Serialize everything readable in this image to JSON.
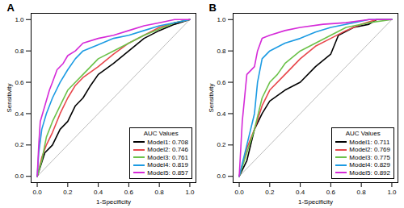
{
  "chart_data": [
    {
      "type": "line",
      "title": "A",
      "x_label": "1-Specificity",
      "y_label": "Sensitivity",
      "xlim": [
        -0.04,
        1.04
      ],
      "ylim": [
        -0.04,
        1.04
      ],
      "xticks": [
        {
          "value": 0,
          "label": "0.0"
        },
        0.2,
        0.4,
        0.6,
        0.8,
        {
          "value": 1,
          "label": "1.0"
        }
      ],
      "yticks": [
        {
          "value": 0,
          "label": "0.0"
        },
        0.2,
        0.4,
        0.6,
        0.8,
        {
          "value": 1,
          "label": "1.0"
        }
      ],
      "grid": false,
      "legend": "bottom-right",
      "legend_title": "AUC Values",
      "series": [
        {
          "name": null,
          "color": "#aaaaaa",
          "x": [
            0,
            1
          ],
          "values": [
            0,
            1
          ]
        },
        {
          "name": "Model1: 0.708",
          "color": "#000000",
          "x": [
            0,
            0.05,
            0.1,
            0.15,
            0.2,
            0.25,
            0.3,
            0.35,
            0.4,
            0.5,
            0.6,
            0.7,
            0.8,
            0.9,
            1
          ],
          "values": [
            0,
            0.15,
            0.2,
            0.3,
            0.35,
            0.45,
            0.5,
            0.58,
            0.65,
            0.72,
            0.8,
            0.88,
            0.93,
            0.97,
            1
          ]
        },
        {
          "name": "Model2: 0.746",
          "color": "#e8474c",
          "x": [
            0,
            0.03,
            0.06,
            0.1,
            0.15,
            0.2,
            0.25,
            0.3,
            0.4,
            0.5,
            0.6,
            0.7,
            0.8,
            0.9,
            1
          ],
          "values": [
            0,
            0.12,
            0.2,
            0.28,
            0.4,
            0.5,
            0.58,
            0.63,
            0.7,
            0.78,
            0.85,
            0.9,
            0.95,
            0.98,
            1
          ]
        },
        {
          "name": "Model3: 0.761",
          "color": "#6cc24a",
          "x": [
            0,
            0.03,
            0.06,
            0.1,
            0.15,
            0.2,
            0.25,
            0.3,
            0.35,
            0.4,
            0.5,
            0.6,
            0.7,
            0.8,
            0.9,
            1
          ],
          "values": [
            0,
            0.1,
            0.25,
            0.35,
            0.45,
            0.55,
            0.6,
            0.65,
            0.7,
            0.75,
            0.8,
            0.85,
            0.9,
            0.94,
            0.98,
            1
          ]
        },
        {
          "name": "Model4: 0.819",
          "color": "#1c9be3",
          "x": [
            0,
            0.01,
            0.03,
            0.06,
            0.1,
            0.15,
            0.2,
            0.25,
            0.3,
            0.4,
            0.5,
            0.6,
            0.7,
            0.8,
            0.9,
            1
          ],
          "values": [
            0,
            0.15,
            0.3,
            0.4,
            0.5,
            0.6,
            0.68,
            0.75,
            0.8,
            0.84,
            0.88,
            0.9,
            0.93,
            0.96,
            0.98,
            1
          ]
        },
        {
          "name": "Model5: 0.857",
          "color": "#d52ad8",
          "x": [
            0,
            0.01,
            0.02,
            0.05,
            0.08,
            0.1,
            0.13,
            0.17,
            0.2,
            0.25,
            0.3,
            0.4,
            0.5,
            0.6,
            0.7,
            0.8,
            0.9,
            1
          ],
          "values": [
            0,
            0.2,
            0.35,
            0.45,
            0.55,
            0.6,
            0.68,
            0.72,
            0.77,
            0.8,
            0.85,
            0.88,
            0.9,
            0.93,
            0.96,
            0.98,
            1,
            1
          ]
        }
      ]
    },
    {
      "type": "line",
      "title": "B",
      "x_label": "1-Specificity",
      "y_label": "Sensitivity",
      "xlim": [
        -0.04,
        1.04
      ],
      "ylim": [
        -0.04,
        1.04
      ],
      "xticks": [
        {
          "value": 0,
          "label": "0.0"
        },
        0.2,
        0.4,
        0.6,
        0.8,
        {
          "value": 1,
          "label": "1.0"
        }
      ],
      "yticks": [
        {
          "value": 0,
          "label": "0.0"
        },
        0.2,
        0.4,
        0.6,
        0.8,
        {
          "value": 1,
          "label": "1.0"
        }
      ],
      "grid": false,
      "legend": "bottom-right",
      "legend_title": "AUC Values",
      "series": [
        {
          "name": null,
          "color": "#aaaaaa",
          "x": [
            0,
            1
          ],
          "values": [
            0,
            1
          ]
        },
        {
          "name": "Model1: 0.711",
          "color": "#000000",
          "x": [
            0,
            0.05,
            0.1,
            0.15,
            0.2,
            0.3,
            0.4,
            0.5,
            0.6,
            0.65,
            0.75,
            0.85,
            0.9,
            1
          ],
          "values": [
            0,
            0.1,
            0.3,
            0.4,
            0.48,
            0.55,
            0.6,
            0.7,
            0.78,
            0.9,
            0.95,
            0.97,
            1,
            1
          ]
        },
        {
          "name": "Model2: 0.769",
          "color": "#e8474c",
          "x": [
            0,
            0.05,
            0.1,
            0.15,
            0.2,
            0.3,
            0.4,
            0.5,
            0.6,
            0.7,
            0.8,
            0.9,
            1
          ],
          "values": [
            0,
            0.18,
            0.3,
            0.45,
            0.55,
            0.65,
            0.75,
            0.83,
            0.88,
            0.93,
            0.97,
            1,
            1
          ]
        },
        {
          "name": "Model3: 0.775",
          "color": "#6cc24a",
          "x": [
            0,
            0.05,
            0.1,
            0.15,
            0.2,
            0.25,
            0.3,
            0.4,
            0.5,
            0.6,
            0.7,
            0.85,
            1
          ],
          "values": [
            0,
            0.15,
            0.3,
            0.5,
            0.6,
            0.65,
            0.72,
            0.8,
            0.85,
            0.9,
            0.95,
            0.98,
            1
          ]
        },
        {
          "name": "Model4: 0.829",
          "color": "#1c9be3",
          "x": [
            0,
            0.05,
            0.1,
            0.12,
            0.15,
            0.2,
            0.3,
            0.4,
            0.5,
            0.6,
            0.75,
            0.85,
            1
          ],
          "values": [
            0,
            0.2,
            0.4,
            0.6,
            0.75,
            0.8,
            0.85,
            0.88,
            0.92,
            0.95,
            0.98,
            1,
            1
          ]
        },
        {
          "name": "Model5: 0.892",
          "color": "#d52ad8",
          "x": [
            0,
            0.02,
            0.05,
            0.1,
            0.12,
            0.15,
            0.2,
            0.3,
            0.4,
            0.55,
            0.7,
            0.85,
            1
          ],
          "values": [
            0,
            0.35,
            0.65,
            0.7,
            0.8,
            0.88,
            0.9,
            0.93,
            0.95,
            0.97,
            0.98,
            1,
            1
          ]
        }
      ]
    }
  ]
}
